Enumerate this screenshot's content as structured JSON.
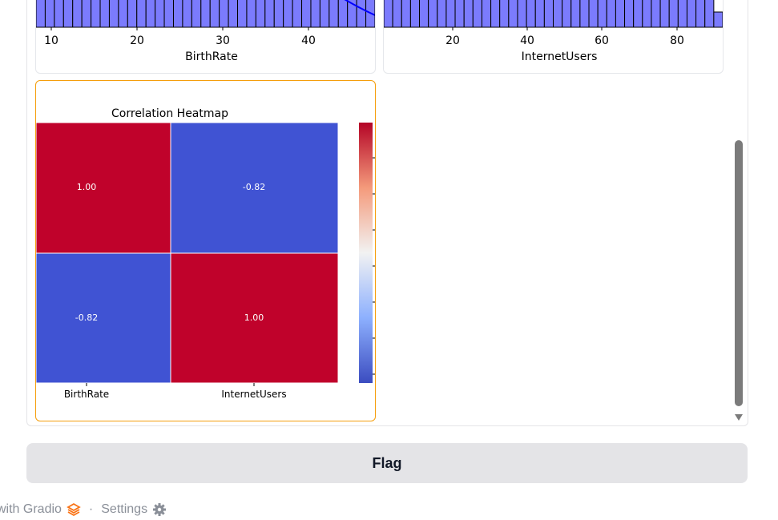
{
  "plots": {
    "birthrate": {
      "xticks": [
        "10",
        "20",
        "30",
        "40"
      ],
      "xlabel": "BirthRate"
    },
    "internet": {
      "xticks": [
        "20",
        "40",
        "60",
        "80"
      ],
      "xlabel": "InternetUsers"
    }
  },
  "chart_data": [
    {
      "type": "bar",
      "categories": [],
      "values": [],
      "xlabel": "BirthRate",
      "xticks": [
        "10",
        "20",
        "30",
        "40"
      ],
      "colors": {
        "bar": "#7b7bfd",
        "kde": "#0000ff"
      }
    },
    {
      "type": "bar",
      "categories": [],
      "values": [],
      "xlabel": "InternetUsers",
      "xticks": [
        "20",
        "40",
        "60",
        "80"
      ],
      "colors": {
        "bar": "#7b7bfd"
      }
    },
    {
      "type": "heatmap",
      "title": "Correlation Heatmap",
      "rows": [
        "BirthRate",
        "InternetUsers"
      ],
      "columns": [
        "BirthRate",
        "InternetUsers"
      ],
      "values": [
        [
          1.0,
          -0.82
        ],
        [
          -0.82,
          1.0
        ]
      ],
      "cell_labels": [
        [
          "1.00",
          "-0.82"
        ],
        [
          "-0.82",
          "1.00"
        ]
      ],
      "colormap": "coolwarm",
      "colors": {
        "high": "#c0022b",
        "low": "#4053d3"
      }
    }
  ],
  "flag_button": {
    "label": "Flag"
  },
  "footer": {
    "built_with": "with Gradio",
    "separator": "·",
    "settings": "Settings"
  }
}
